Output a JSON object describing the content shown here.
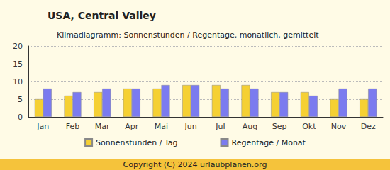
{
  "chart_data": {
    "type": "bar",
    "title": "USA, Central Valley",
    "subtitle": "Klimadiagramm: Sonnenstunden / Regentage, monatlich, gemittelt",
    "footer": "Copyright (C) 2024 urlaubplanen.org",
    "categories": [
      "Jan",
      "Feb",
      "Mar",
      "Apr",
      "Mai",
      "Jun",
      "Jul",
      "Aug",
      "Sep",
      "Okt",
      "Nov",
      "Dez"
    ],
    "series": [
      {
        "name": "Sonnenstunden / Tag",
        "color": "#f5d033",
        "values": [
          5,
          6,
          7,
          8,
          8,
          9,
          9,
          9,
          7,
          7,
          5,
          5
        ]
      },
      {
        "name": "Regentage / Monat",
        "color": "#7b7bef",
        "values": [
          8,
          7,
          8,
          8,
          9,
          9,
          8,
          8,
          7,
          6,
          8,
          8
        ]
      }
    ],
    "ylim": [
      0,
      20
    ],
    "yticks": [
      0,
      5,
      10,
      15,
      20
    ],
    "grid": true,
    "legend": "bottom"
  }
}
